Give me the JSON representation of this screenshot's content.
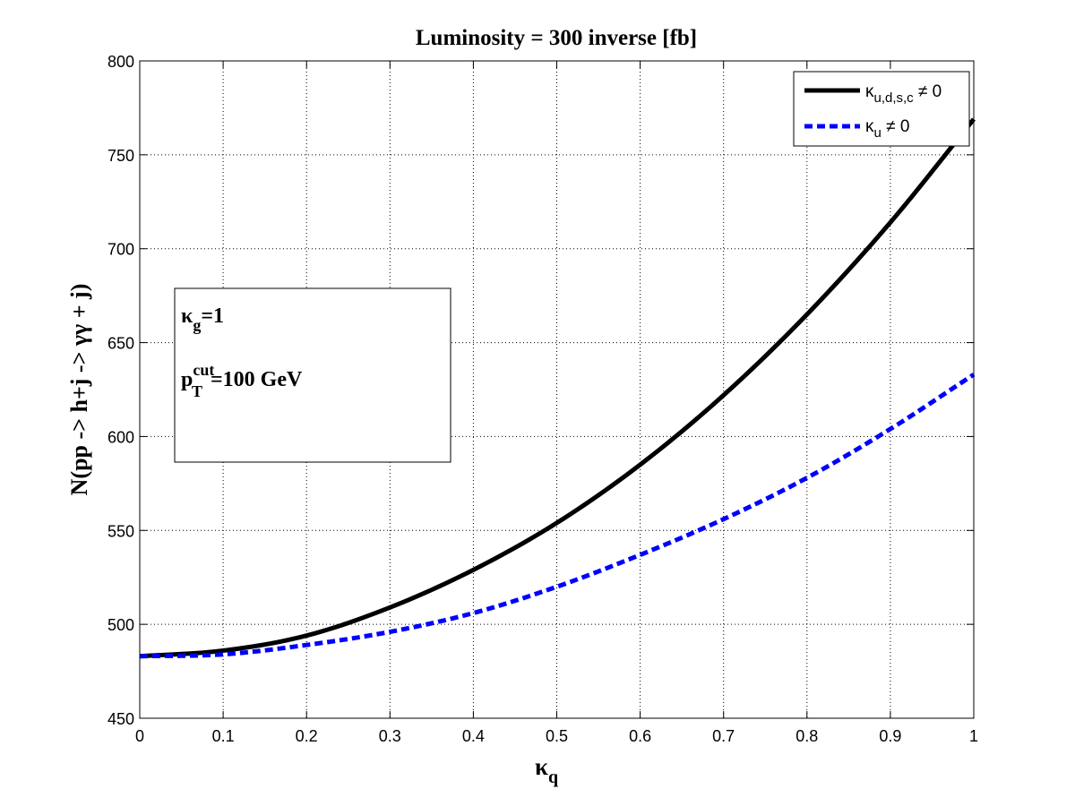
{
  "chart_data": {
    "type": "line",
    "title": "Luminosity = 300 inverse [fb]",
    "xlabel": "κ",
    "xlabel_sub": "q",
    "ylabel": "N(pp -> h+j -> γγ + j)",
    "xlim": [
      0,
      1
    ],
    "ylim": [
      450,
      800
    ],
    "xticks": [
      0,
      0.1,
      0.2,
      0.3,
      0.4,
      0.5,
      0.6,
      0.7,
      0.8,
      0.9,
      1
    ],
    "xtick_labels": [
      "0",
      "0.1",
      "0.2",
      "0.3",
      "0.4",
      "0.5",
      "0.6",
      "0.7",
      "0.8",
      "0.9",
      "1"
    ],
    "yticks": [
      450,
      500,
      550,
      600,
      650,
      700,
      750,
      800
    ],
    "ytick_labels": [
      "450",
      "500",
      "550",
      "600",
      "650",
      "700",
      "750",
      "800"
    ],
    "grid": true,
    "legend_position": "top-right",
    "x": [
      0,
      0.1,
      0.2,
      0.3,
      0.4,
      0.5,
      0.6,
      0.7,
      0.8,
      0.9,
      1.0
    ],
    "series": [
      {
        "legend_main": "κ",
        "legend_sub": "u,d,s,c",
        "legend_tail": " ≠ 0",
        "color": "#000000",
        "style": "solid",
        "values": [
          483,
          486,
          494,
          509,
          529,
          554,
          585,
          622,
          665,
          714,
          769
        ]
      },
      {
        "legend_main": "κ",
        "legend_sub": "u",
        "legend_tail": " ≠ 0",
        "color": "#0000ff",
        "style": "dashed",
        "values": [
          483,
          484,
          489,
          496,
          506,
          520,
          537,
          556,
          578,
          604,
          633
        ]
      }
    ],
    "annotation": {
      "line1_main": "κ",
      "line1_sub": "g",
      "line1_tail": "=1",
      "line2_main": "p",
      "line2_sup": "cut",
      "line2_sub": "T",
      "line2_tail": "=100 GeV"
    }
  }
}
